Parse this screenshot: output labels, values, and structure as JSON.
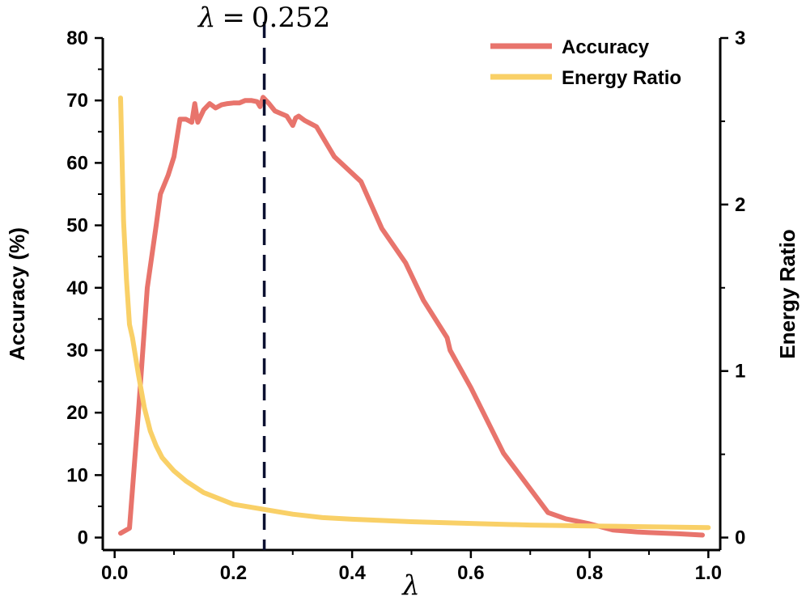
{
  "chart_data": {
    "type": "line",
    "title": "",
    "xlabel": "λ",
    "ylabel_left": "Accuracy (%)",
    "ylabel_right": "Energy Ratio",
    "xlim": [
      -0.02,
      1.02
    ],
    "ylim_left": [
      -2,
      80
    ],
    "ylim_right": [
      -0.075,
      3.0
    ],
    "x_ticks": [
      0.0,
      0.2,
      0.4,
      0.6,
      0.8,
      1.0
    ],
    "x_tick_labels": [
      "0.0",
      "0.2",
      "0.4",
      "0.6",
      "0.8",
      "1.0"
    ],
    "y_left_ticks": [
      0,
      10,
      20,
      30,
      40,
      50,
      60,
      70,
      80
    ],
    "y_left_tick_labels": [
      "0",
      "10",
      "20",
      "30",
      "40",
      "50",
      "60",
      "70",
      "80"
    ],
    "y_right_ticks": [
      0,
      1,
      2,
      3
    ],
    "y_right_tick_labels": [
      "0",
      "1",
      "2",
      "3"
    ],
    "grid": false,
    "legend_position": "top-right",
    "annotation": {
      "type": "vline",
      "x": 0.252,
      "symbol": "λ",
      "equals": "=",
      "value": "0.252",
      "color": "#0b1030"
    },
    "series": [
      {
        "name": "Accuracy",
        "axis": "left",
        "color": "#e8746c",
        "x": [
          0.01,
          0.025,
          0.04,
          0.055,
          0.07,
          0.077,
          0.09,
          0.1,
          0.11,
          0.12,
          0.13,
          0.135,
          0.14,
          0.145,
          0.15,
          0.16,
          0.17,
          0.18,
          0.19,
          0.2,
          0.21,
          0.22,
          0.23,
          0.24,
          0.245,
          0.25,
          0.26,
          0.27,
          0.29,
          0.3,
          0.305,
          0.31,
          0.32,
          0.34,
          0.37,
          0.415,
          0.45,
          0.49,
          0.52,
          0.56,
          0.565,
          0.6,
          0.655,
          0.73,
          0.76,
          0.8,
          0.84,
          0.88,
          0.9,
          0.95,
          0.99
        ],
        "y": [
          0.7,
          1.5,
          20,
          40,
          50,
          55,
          58,
          61,
          67,
          67,
          66.5,
          69.5,
          66.5,
          67.5,
          68.5,
          69.5,
          68.8,
          69.3,
          69.5,
          69.6,
          69.6,
          70,
          70,
          69.8,
          69,
          70.5,
          69.5,
          68.3,
          67.5,
          66,
          67.2,
          67.5,
          66.8,
          65.8,
          61,
          57,
          49.5,
          44,
          38,
          32,
          30,
          24,
          13.5,
          4,
          3,
          2.2,
          1.2,
          0.9,
          0.8,
          0.6,
          0.4
        ]
      },
      {
        "name": "Energy Ratio",
        "axis": "right",
        "color": "#f9d067",
        "x": [
          0.01,
          0.015,
          0.02,
          0.025,
          0.03,
          0.04,
          0.05,
          0.06,
          0.07,
          0.08,
          0.1,
          0.12,
          0.15,
          0.2,
          0.25,
          0.3,
          0.35,
          0.4,
          0.5,
          0.6,
          0.7,
          0.8,
          0.9,
          1.0
        ],
        "y": [
          2.64,
          1.9,
          1.55,
          1.28,
          1.2,
          0.98,
          0.78,
          0.64,
          0.55,
          0.48,
          0.4,
          0.34,
          0.27,
          0.2,
          0.17,
          0.14,
          0.12,
          0.11,
          0.095,
          0.085,
          0.075,
          0.07,
          0.065,
          0.06
        ]
      }
    ]
  }
}
